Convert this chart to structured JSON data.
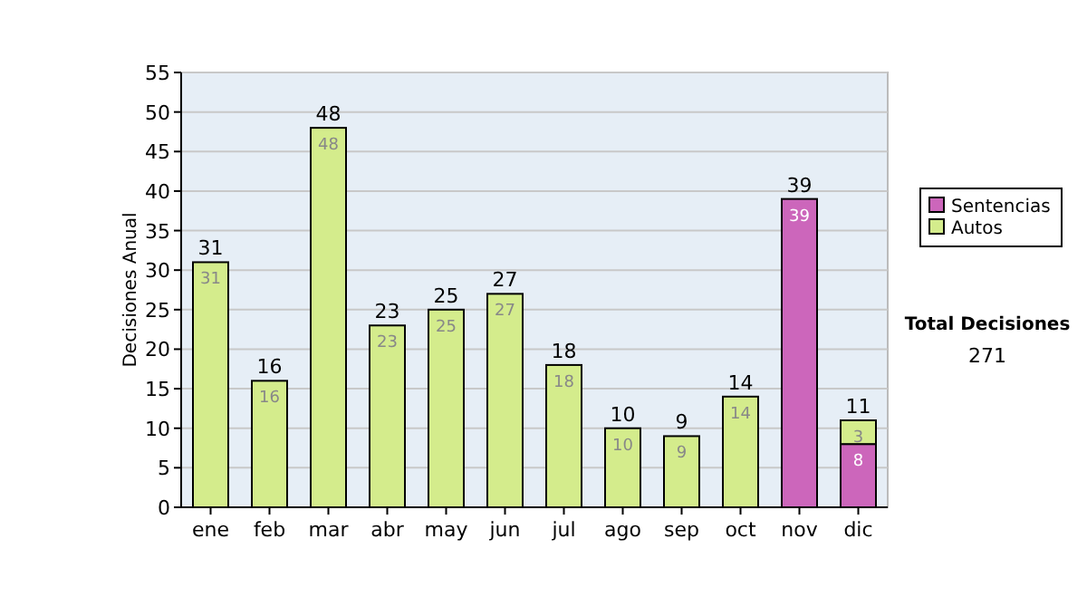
{
  "chart_data": {
    "type": "bar",
    "stacked": true,
    "ylabel": "Decisiones Anual",
    "categories": [
      "ene",
      "feb",
      "mar",
      "abr",
      "may",
      "jun",
      "jul",
      "ago",
      "sep",
      "oct",
      "nov",
      "dic"
    ],
    "series": [
      {
        "name": "Sentencias",
        "color": "#cc66bb",
        "values": [
          null,
          null,
          null,
          null,
          null,
          null,
          null,
          null,
          null,
          null,
          39,
          8
        ],
        "value_labels": [
          null,
          null,
          null,
          null,
          null,
          null,
          null,
          null,
          null,
          null,
          "39",
          "8"
        ]
      },
      {
        "name": "Autos",
        "color": "#d4ec8c",
        "values": [
          31,
          16,
          48,
          23,
          25,
          27,
          18,
          10,
          9,
          14,
          null,
          3
        ],
        "value_labels": [
          "31",
          "16",
          "48",
          "23",
          "25",
          "27",
          "18",
          "10",
          "9",
          "14",
          null,
          "3"
        ]
      }
    ],
    "totals": [
      "31",
      "16",
      "48",
      "23",
      "25",
      "27",
      "18",
      "10",
      "9",
      "14",
      "39",
      "11"
    ],
    "ylim": [
      0,
      55
    ],
    "yticks": [
      0,
      5,
      10,
      15,
      20,
      25,
      30,
      35,
      40,
      45,
      50,
      55
    ],
    "grid": "y",
    "legend": "right",
    "annotations": [
      "Total Decisiones",
      "271"
    ]
  }
}
